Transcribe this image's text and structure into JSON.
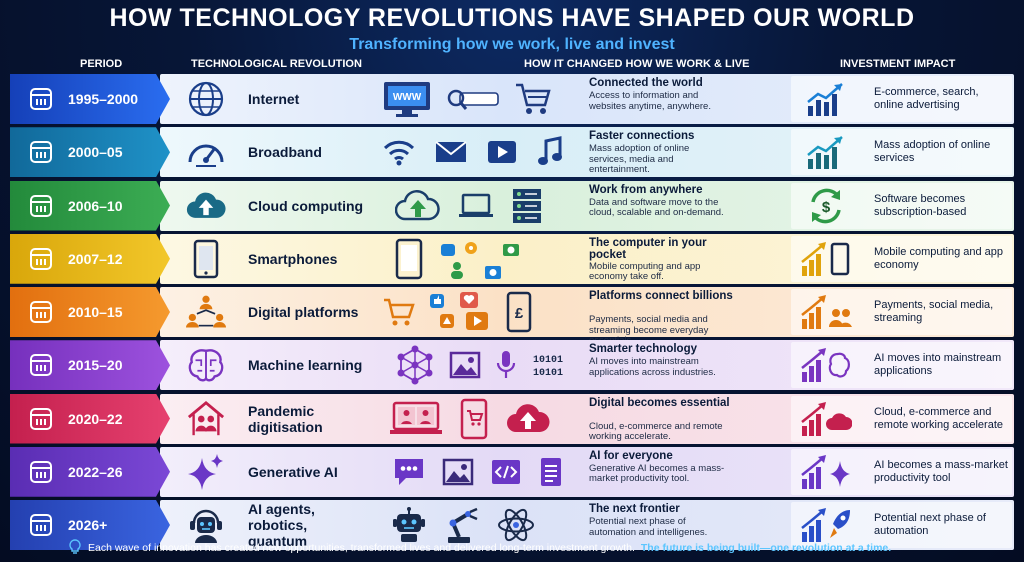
{
  "title": "HOW TECHNOLOGY REVOLUTIONS HAVE SHAPED OUR WORLD",
  "subtitle": "Transforming how we work, live and invest",
  "headers": {
    "period": "PERIOD",
    "revolution": "TECHNOLOGICAL REVOLUTION",
    "change": "HOW IT CHANGED HOW WE WORK & LIVE",
    "investment": "INVESTMENT IMPACT"
  },
  "rows": [
    {
      "period": "1995–2000",
      "tech": "Internet",
      "change_title": "Connected the world",
      "change_desc": "Access to information and websites anytime, anywhere.",
      "investment": "E-commerce, search, online advertising",
      "color": "#1a56d6",
      "tint": "#dfe9fb"
    },
    {
      "period": "2000–05",
      "tech": "Broadband",
      "change_title": "Faster connections",
      "change_desc": "Mass adoption of online services, media and entertainment.",
      "investment": "Mass adoption of online services",
      "color": "#1a7fb0",
      "tint": "#dff1f8"
    },
    {
      "period": "2006–10",
      "tech": "Cloud computing",
      "change_title": "Work from anywhere",
      "change_desc": "Data and software move to the cloud, scalable and on-demand.",
      "investment": "Software becomes subscription-based",
      "color": "#2f9a48",
      "tint": "#e3f4e5"
    },
    {
      "period": "2007–12",
      "tech": "Smartphones",
      "change_title": "The computer in your pocket",
      "change_desc": "Mobile computing and app economy take off.",
      "investment": "Mobile computing and app economy",
      "color": "#e8b70c",
      "tint": "#fcf5d6"
    },
    {
      "period": "2010–15",
      "tech": "Digital platforms",
      "change_title": "Platforms connect billions",
      "change_desc": "Payments, social media and streaming become everyday essentials.",
      "investment": "Payments, social media, streaming",
      "color": "#ee8217",
      "tint": "#fdebd8"
    },
    {
      "period": "2015–20",
      "tech": "Machine learning",
      "change_title": "Smarter technology",
      "change_desc": "AI moves into mainstream applications across industries.",
      "investment": "AI moves into mainstream applications",
      "color": "#8b3fcf",
      "tint": "#efe3f8"
    },
    {
      "period": "2020–22",
      "tech": "Pandemic digitisation",
      "change_title": "Digital becomes essential",
      "change_desc": "Cloud, e-commerce and remote working accelerate.",
      "investment": "Cloud, e-commerce and remote working accelerate",
      "color": "#d72a5c",
      "tint": "#f9dfe7"
    },
    {
      "period": "2022–26",
      "tech": "Generative AI",
      "change_title": "AI for everyone",
      "change_desc": "Generative AI becomes a mass-market productivity tool.",
      "investment": "AI becomes a mass-market productivity tool",
      "color": "#6a37c6",
      "tint": "#e8e0f7"
    },
    {
      "period": "2026+",
      "tech": "AI agents, robotics, quantum",
      "change_title": "The next frontier",
      "change_desc": "Potential next phase of automation and intelligenes.",
      "investment": "Potential next phase of automation",
      "color": "#2a4fc8",
      "tint": "#e0e6f8"
    }
  ],
  "footer": {
    "text": "Each wave of innovation has created new opportunities, transformed lives and delivered long-term investment growth.",
    "highlight": "The future is being built—one revolution at a time."
  },
  "labels": {
    "www": "WWW",
    "binary_1": "10101",
    "binary_2": "10101",
    "pound": "£"
  }
}
